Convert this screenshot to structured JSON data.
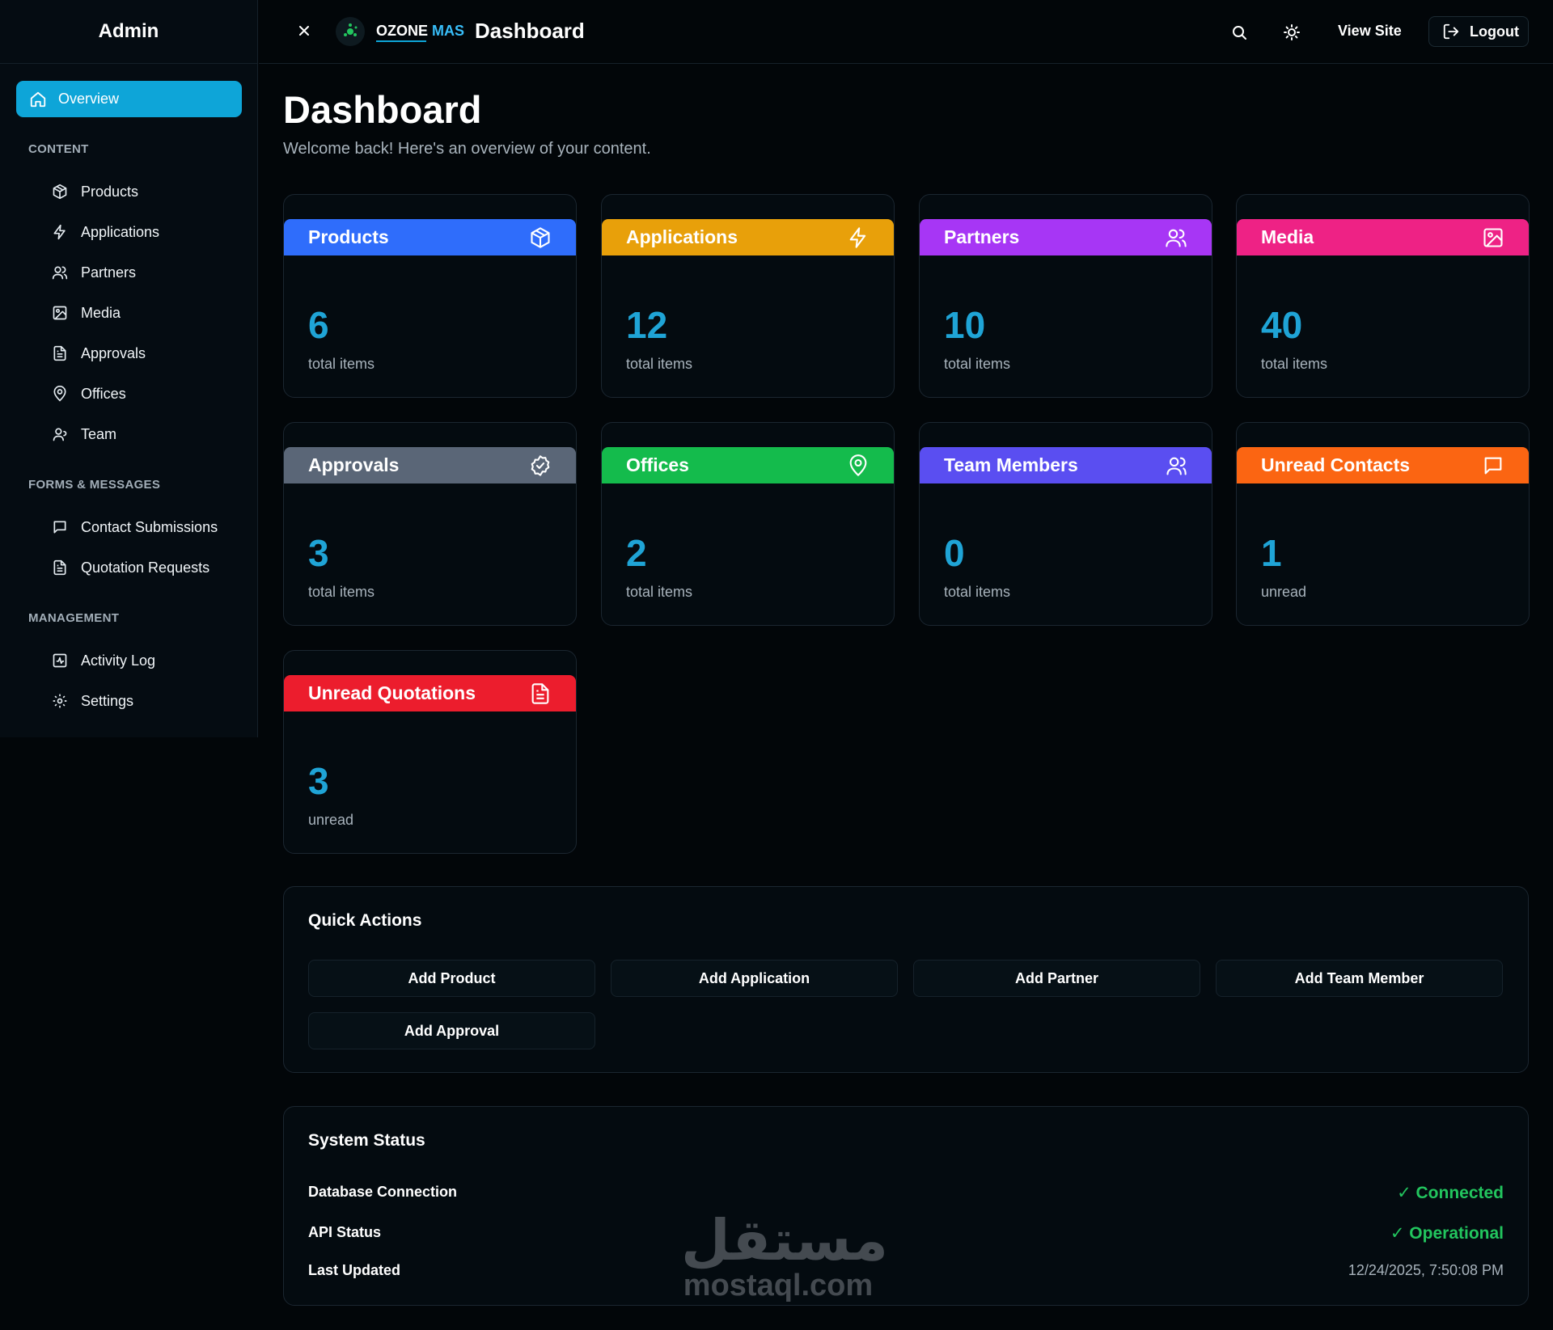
{
  "sidebar": {
    "title": "Admin",
    "overview": "Overview",
    "sections": [
      {
        "label": "CONTENT",
        "items": [
          "Products",
          "Applications",
          "Partners",
          "Media",
          "Approvals",
          "Offices",
          "Team"
        ]
      },
      {
        "label": "FORMS & MESSAGES",
        "items": [
          "Contact Submissions",
          "Quotation Requests"
        ]
      },
      {
        "label": "MANAGEMENT",
        "items": [
          "Activity Log",
          "Settings"
        ]
      }
    ]
  },
  "topbar": {
    "logo_primary": "OZONE",
    "logo_secondary": "MAS",
    "title": "Dashboard",
    "view_site": "View Site",
    "logout": "Logout"
  },
  "page": {
    "title": "Dashboard",
    "subtitle": "Welcome back! Here's an overview of your content."
  },
  "cards": [
    {
      "title": "Products",
      "value": "6",
      "caption": "total items",
      "color": "#2f6dfb",
      "icon": "box-icon"
    },
    {
      "title": "Applications",
      "value": "12",
      "caption": "total items",
      "color": "#e8a00a",
      "icon": "lightning-icon"
    },
    {
      "title": "Partners",
      "value": "10",
      "caption": "total items",
      "color": "#a736f5",
      "icon": "users-icon"
    },
    {
      "title": "Media",
      "value": "40",
      "caption": "total items",
      "color": "#ee2285",
      "icon": "image-icon"
    },
    {
      "title": "Approvals",
      "value": "3",
      "caption": "total items",
      "color": "#5a6677",
      "icon": "badge-check-icon"
    },
    {
      "title": "Offices",
      "value": "2",
      "caption": "total items",
      "color": "#14bb4c",
      "icon": "map-pin-icon"
    },
    {
      "title": "Team Members",
      "value": "0",
      "caption": "total items",
      "color": "#5a4ef1",
      "icon": "user-group-icon"
    },
    {
      "title": "Unread Contacts",
      "value": "1",
      "caption": "unread",
      "color": "#fb6512",
      "icon": "message-icon"
    },
    {
      "title": "Unread Quotations",
      "value": "3",
      "caption": "unread",
      "color": "#ec1d2d",
      "icon": "file-text-icon"
    }
  ],
  "quick_actions": {
    "title": "Quick Actions",
    "buttons": [
      "Add Product",
      "Add Application",
      "Add Partner",
      "Add Team Member",
      "Add Approval"
    ]
  },
  "system_status": {
    "title": "System Status",
    "rows": [
      {
        "label": "Database Connection",
        "value": "✓ Connected"
      },
      {
        "label": "API Status",
        "value": "✓ Operational"
      },
      {
        "label": "Last Updated",
        "value": "12/24/2025, 7:50:08 PM"
      }
    ]
  },
  "watermark": {
    "arabic": "مستقل",
    "latin": "mostaql.com"
  }
}
